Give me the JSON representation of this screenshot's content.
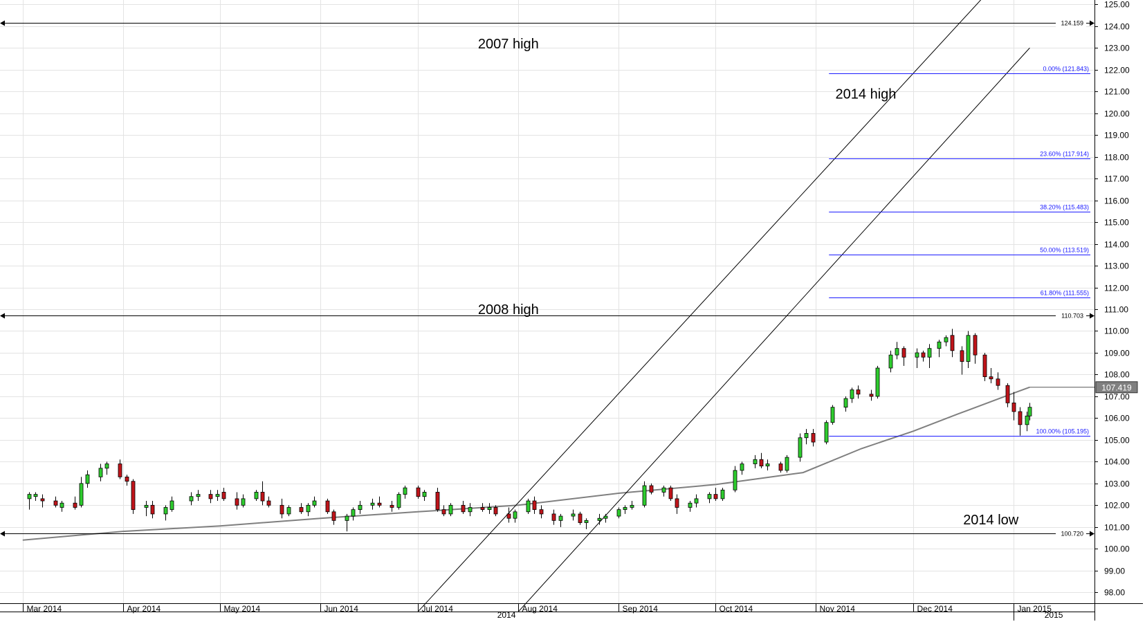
{
  "chart_data": {
    "type": "candlestick",
    "instrument_note": "",
    "y_axis": {
      "min": 97.5,
      "max": 125.2,
      "ticks": [
        "98.00",
        "99.00",
        "100.00",
        "101.00",
        "102.00",
        "103.00",
        "104.00",
        "105.00",
        "106.00",
        "107.00",
        "108.00",
        "109.00",
        "110.00",
        "111.00",
        "112.00",
        "113.00",
        "114.00",
        "115.00",
        "116.00",
        "117.00",
        "118.00",
        "119.00",
        "120.00",
        "121.00",
        "122.00",
        "123.00",
        "124.00",
        "125.00"
      ],
      "position": "right"
    },
    "x_axis": {
      "months": [
        "Mar 2014",
        "Apr 2014",
        "May 2014",
        "Jun 2014",
        "Jul 2014",
        "Aug 2014",
        "Sep 2014",
        "Oct 2014",
        "Nov 2014",
        "Dec 2014",
        "Jan 2015"
      ],
      "years": [
        "2014",
        "2015"
      ]
    },
    "grid": true,
    "current_price": "107.419",
    "annotations": [
      {
        "text": "2007 high",
        "value": 124.159,
        "value_label": "124.159"
      },
      {
        "text": "2008 high",
        "value": 110.703,
        "value_label": "110.703"
      },
      {
        "text": "2014 low",
        "value": 100.72,
        "value_label": "100.720"
      },
      {
        "text": "2014 high"
      }
    ],
    "fibonacci": {
      "high": 121.843,
      "low": 105.195,
      "levels": [
        {
          "label": "0.00% (121.843)",
          "value": 121.843
        },
        {
          "label": "23.60% (117.914)",
          "value": 117.914
        },
        {
          "label": "38.20% (115.483)",
          "value": 115.483
        },
        {
          "label": "50.00% (113.519)",
          "value": 113.519
        },
        {
          "label": "61.80% (111.555)",
          "value": 111.555
        },
        {
          "label": "100.00% (105.195)",
          "value": 105.195
        }
      ]
    },
    "trend_channel": {
      "upper": [
        {
          "date": "2014-07-01",
          "value": 97.1
        },
        {
          "date": "2015-01-02",
          "value": 127.0
        }
      ],
      "lower": [
        {
          "date": "2014-08-01",
          "value": 97.1
        },
        {
          "date": "2015-01-06",
          "value": 123.0
        }
      ]
    },
    "moving_average": [
      {
        "date": "2014-03-01",
        "value": 100.4
      },
      {
        "date": "2014-04-01",
        "value": 100.8
      },
      {
        "date": "2014-05-01",
        "value": 101.05
      },
      {
        "date": "2014-06-01",
        "value": 101.4
      },
      {
        "date": "2014-07-01",
        "value": 101.7
      },
      {
        "date": "2014-08-01",
        "value": 102.0
      },
      {
        "date": "2014-09-01",
        "value": 102.55
      },
      {
        "date": "2014-10-01",
        "value": 102.95
      },
      {
        "date": "2014-10-28",
        "value": 103.5
      },
      {
        "date": "2014-11-15",
        "value": 104.6
      },
      {
        "date": "2014-12-01",
        "value": 105.4
      },
      {
        "date": "2014-12-15",
        "value": 106.2
      },
      {
        "date": "2015-01-02",
        "value": 107.2
      },
      {
        "date": "2015-01-06",
        "value": 107.419
      }
    ],
    "candles": [
      {
        "date": "2014-03-03",
        "o": 102.3,
        "h": 102.6,
        "l": 101.8,
        "c": 102.5
      },
      {
        "date": "2014-03-05",
        "o": 102.4,
        "h": 102.6,
        "l": 102.2,
        "c": 102.5
      },
      {
        "date": "2014-03-07",
        "o": 102.3,
        "h": 102.5,
        "l": 101.9,
        "c": 102.2
      },
      {
        "date": "2014-03-11",
        "o": 102.2,
        "h": 102.4,
        "l": 101.9,
        "c": 102.0
      },
      {
        "date": "2014-03-13",
        "o": 101.9,
        "h": 102.2,
        "l": 101.7,
        "c": 102.1
      },
      {
        "date": "2014-03-17",
        "o": 102.1,
        "h": 102.4,
        "l": 101.8,
        "c": 101.9
      },
      {
        "date": "2014-03-19",
        "o": 102.0,
        "h": 103.3,
        "l": 101.9,
        "c": 103.0
      },
      {
        "date": "2014-03-21",
        "o": 103.0,
        "h": 103.6,
        "l": 102.8,
        "c": 103.4
      },
      {
        "date": "2014-03-25",
        "o": 103.3,
        "h": 103.9,
        "l": 103.1,
        "c": 103.7
      },
      {
        "date": "2014-03-27",
        "o": 103.7,
        "h": 104.0,
        "l": 103.4,
        "c": 103.9
      },
      {
        "date": "2014-03-31",
        "o": 103.9,
        "h": 104.1,
        "l": 103.2,
        "c": 103.3
      },
      {
        "date": "2014-04-02",
        "o": 103.3,
        "h": 103.4,
        "l": 102.9,
        "c": 103.1
      },
      {
        "date": "2014-04-04",
        "o": 103.1,
        "h": 103.2,
        "l": 101.6,
        "c": 101.8
      },
      {
        "date": "2014-04-08",
        "o": 101.9,
        "h": 102.2,
        "l": 101.5,
        "c": 102.0
      },
      {
        "date": "2014-04-10",
        "o": 102.0,
        "h": 102.2,
        "l": 101.4,
        "c": 101.6
      },
      {
        "date": "2014-04-14",
        "o": 101.6,
        "h": 102.0,
        "l": 101.3,
        "c": 101.9
      },
      {
        "date": "2014-04-16",
        "o": 101.8,
        "h": 102.4,
        "l": 101.7,
        "c": 102.2
      },
      {
        "date": "2014-04-22",
        "o": 102.2,
        "h": 102.6,
        "l": 102.0,
        "c": 102.4
      },
      {
        "date": "2014-04-24",
        "o": 102.4,
        "h": 102.7,
        "l": 102.2,
        "c": 102.5
      },
      {
        "date": "2014-04-28",
        "o": 102.5,
        "h": 102.7,
        "l": 102.1,
        "c": 102.3
      },
      {
        "date": "2014-04-30",
        "o": 102.4,
        "h": 102.7,
        "l": 102.2,
        "c": 102.5
      },
      {
        "date": "2014-05-02",
        "o": 102.6,
        "h": 102.8,
        "l": 102.2,
        "c": 102.3
      },
      {
        "date": "2014-05-06",
        "o": 102.3,
        "h": 102.6,
        "l": 101.8,
        "c": 102.0
      },
      {
        "date": "2014-05-08",
        "o": 102.0,
        "h": 102.5,
        "l": 101.9,
        "c": 102.3
      },
      {
        "date": "2014-05-12",
        "o": 102.3,
        "h": 102.7,
        "l": 102.2,
        "c": 102.6
      },
      {
        "date": "2014-05-14",
        "o": 102.6,
        "h": 103.1,
        "l": 102.0,
        "c": 102.2
      },
      {
        "date": "2014-05-16",
        "o": 102.2,
        "h": 102.4,
        "l": 101.9,
        "c": 102.0
      },
      {
        "date": "2014-05-20",
        "o": 102.0,
        "h": 102.3,
        "l": 101.4,
        "c": 101.6
      },
      {
        "date": "2014-05-22",
        "o": 101.6,
        "h": 102.0,
        "l": 101.5,
        "c": 101.9
      },
      {
        "date": "2014-05-26",
        "o": 101.9,
        "h": 102.1,
        "l": 101.6,
        "c": 101.7
      },
      {
        "date": "2014-05-28",
        "o": 101.7,
        "h": 102.1,
        "l": 101.5,
        "c": 102.0
      },
      {
        "date": "2014-05-30",
        "o": 102.0,
        "h": 102.4,
        "l": 101.9,
        "c": 102.2
      },
      {
        "date": "2014-06-03",
        "o": 102.2,
        "h": 102.3,
        "l": 101.6,
        "c": 101.7
      },
      {
        "date": "2014-06-05",
        "o": 101.7,
        "h": 101.8,
        "l": 101.1,
        "c": 101.3
      },
      {
        "date": "2014-06-09",
        "o": 101.3,
        "h": 101.6,
        "l": 100.8,
        "c": 101.5
      },
      {
        "date": "2014-06-11",
        "o": 101.5,
        "h": 101.9,
        "l": 101.3,
        "c": 101.8
      },
      {
        "date": "2014-06-13",
        "o": 101.8,
        "h": 102.2,
        "l": 101.6,
        "c": 102.0
      },
      {
        "date": "2014-06-17",
        "o": 102.0,
        "h": 102.3,
        "l": 101.8,
        "c": 102.1
      },
      {
        "date": "2014-06-19",
        "o": 102.1,
        "h": 102.4,
        "l": 101.9,
        "c": 102.0
      },
      {
        "date": "2014-06-23",
        "o": 102.0,
        "h": 102.2,
        "l": 101.7,
        "c": 101.9
      },
      {
        "date": "2014-06-25",
        "o": 101.9,
        "h": 102.6,
        "l": 101.8,
        "c": 102.5
      },
      {
        "date": "2014-06-27",
        "o": 102.5,
        "h": 102.9,
        "l": 102.3,
        "c": 102.8
      },
      {
        "date": "2014-07-01",
        "o": 102.8,
        "h": 102.9,
        "l": 102.3,
        "c": 102.4
      },
      {
        "date": "2014-07-03",
        "o": 102.4,
        "h": 102.7,
        "l": 102.2,
        "c": 102.6
      },
      {
        "date": "2014-07-07",
        "o": 102.6,
        "h": 102.8,
        "l": 101.7,
        "c": 101.8
      },
      {
        "date": "2014-07-09",
        "o": 101.8,
        "h": 102.0,
        "l": 101.5,
        "c": 101.6
      },
      {
        "date": "2014-07-11",
        "o": 101.6,
        "h": 102.1,
        "l": 101.5,
        "c": 102.0
      },
      {
        "date": "2014-07-15",
        "o": 102.0,
        "h": 102.2,
        "l": 101.6,
        "c": 101.7
      },
      {
        "date": "2014-07-17",
        "o": 101.7,
        "h": 102.1,
        "l": 101.5,
        "c": 101.9
      },
      {
        "date": "2014-07-21",
        "o": 101.9,
        "h": 102.1,
        "l": 101.7,
        "c": 101.8
      },
      {
        "date": "2014-07-23",
        "o": 101.8,
        "h": 102.1,
        "l": 101.6,
        "c": 101.9
      },
      {
        "date": "2014-07-25",
        "o": 101.9,
        "h": 102.0,
        "l": 101.5,
        "c": 101.6
      },
      {
        "date": "2014-07-29",
        "o": 101.6,
        "h": 101.9,
        "l": 101.2,
        "c": 101.4
      },
      {
        "date": "2014-07-31",
        "o": 101.4,
        "h": 101.8,
        "l": 101.2,
        "c": 101.7
      },
      {
        "date": "2014-08-04",
        "o": 101.7,
        "h": 102.3,
        "l": 101.6,
        "c": 102.2
      },
      {
        "date": "2014-08-06",
        "o": 102.2,
        "h": 102.4,
        "l": 101.6,
        "c": 101.8
      },
      {
        "date": "2014-08-08",
        "o": 101.8,
        "h": 102.0,
        "l": 101.4,
        "c": 101.6
      },
      {
        "date": "2014-08-12",
        "o": 101.6,
        "h": 101.8,
        "l": 101.1,
        "c": 101.3
      },
      {
        "date": "2014-08-14",
        "o": 101.3,
        "h": 101.6,
        "l": 101.0,
        "c": 101.5
      },
      {
        "date": "2014-08-18",
        "o": 101.5,
        "h": 101.8,
        "l": 101.3,
        "c": 101.6
      },
      {
        "date": "2014-08-20",
        "o": 101.6,
        "h": 101.7,
        "l": 101.1,
        "c": 101.2
      },
      {
        "date": "2014-08-22",
        "o": 101.2,
        "h": 101.4,
        "l": 100.9,
        "c": 101.3
      },
      {
        "date": "2014-08-26",
        "o": 101.3,
        "h": 101.6,
        "l": 101.1,
        "c": 101.4
      },
      {
        "date": "2014-08-28",
        "o": 101.4,
        "h": 101.6,
        "l": 101.2,
        "c": 101.5
      },
      {
        "date": "2014-09-01",
        "o": 101.5,
        "h": 101.9,
        "l": 101.4,
        "c": 101.8
      },
      {
        "date": "2014-09-03",
        "o": 101.8,
        "h": 102.0,
        "l": 101.6,
        "c": 101.9
      },
      {
        "date": "2014-09-05",
        "o": 101.9,
        "h": 102.2,
        "l": 101.8,
        "c": 102.0
      },
      {
        "date": "2014-09-09",
        "o": 102.0,
        "h": 103.1,
        "l": 101.9,
        "c": 102.9
      },
      {
        "date": "2014-09-11",
        "o": 102.9,
        "h": 103.0,
        "l": 102.5,
        "c": 102.6
      },
      {
        "date": "2014-09-15",
        "o": 102.6,
        "h": 102.9,
        "l": 102.4,
        "c": 102.8
      },
      {
        "date": "2014-09-17",
        "o": 102.8,
        "h": 102.9,
        "l": 102.2,
        "c": 102.3
      },
      {
        "date": "2014-09-19",
        "o": 102.3,
        "h": 102.5,
        "l": 101.6,
        "c": 101.9
      },
      {
        "date": "2014-09-23",
        "o": 101.9,
        "h": 102.2,
        "l": 101.7,
        "c": 102.1
      },
      {
        "date": "2014-09-25",
        "o": 102.1,
        "h": 102.5,
        "l": 101.9,
        "c": 102.3
      },
      {
        "date": "2014-09-29",
        "o": 102.3,
        "h": 102.6,
        "l": 102.1,
        "c": 102.5
      },
      {
        "date": "2014-10-01",
        "o": 102.5,
        "h": 102.8,
        "l": 102.2,
        "c": 102.3
      },
      {
        "date": "2014-10-03",
        "o": 102.3,
        "h": 102.8,
        "l": 102.2,
        "c": 102.7
      },
      {
        "date": "2014-10-07",
        "o": 102.7,
        "h": 103.8,
        "l": 102.6,
        "c": 103.6
      },
      {
        "date": "2014-10-09",
        "o": 103.6,
        "h": 104.0,
        "l": 103.4,
        "c": 103.9
      },
      {
        "date": "2014-10-13",
        "o": 103.9,
        "h": 104.3,
        "l": 103.7,
        "c": 104.1
      },
      {
        "date": "2014-10-15",
        "o": 104.1,
        "h": 104.4,
        "l": 103.7,
        "c": 103.8
      },
      {
        "date": "2014-10-17",
        "o": 103.8,
        "h": 104.1,
        "l": 103.6,
        "c": 103.9
      },
      {
        "date": "2014-10-21",
        "o": 103.9,
        "h": 104.0,
        "l": 103.5,
        "c": 103.6
      },
      {
        "date": "2014-10-23",
        "o": 103.6,
        "h": 104.3,
        "l": 103.5,
        "c": 104.2
      },
      {
        "date": "2014-10-27",
        "o": 104.2,
        "h": 105.3,
        "l": 104.0,
        "c": 105.1
      },
      {
        "date": "2014-10-29",
        "o": 105.1,
        "h": 105.5,
        "l": 104.8,
        "c": 105.3
      },
      {
        "date": "2014-10-31",
        "o": 105.3,
        "h": 105.5,
        "l": 104.7,
        "c": 104.9
      },
      {
        "date": "2014-11-04",
        "o": 104.9,
        "h": 105.9,
        "l": 104.8,
        "c": 105.8
      },
      {
        "date": "2014-11-06",
        "o": 105.8,
        "h": 106.6,
        "l": 105.7,
        "c": 106.5
      },
      {
        "date": "2014-11-10",
        "o": 106.5,
        "h": 107.0,
        "l": 106.3,
        "c": 106.9
      },
      {
        "date": "2014-11-12",
        "o": 106.9,
        "h": 107.4,
        "l": 106.7,
        "c": 107.3
      },
      {
        "date": "2014-11-14",
        "o": 107.3,
        "h": 107.5,
        "l": 106.9,
        "c": 107.1
      },
      {
        "date": "2014-11-18",
        "o": 107.1,
        "h": 107.3,
        "l": 106.8,
        "c": 107.0
      },
      {
        "date": "2014-11-20",
        "o": 107.0,
        "h": 108.4,
        "l": 106.9,
        "c": 108.3
      },
      {
        "date": "2014-11-24",
        "o": 108.3,
        "h": 109.1,
        "l": 108.1,
        "c": 108.9
      },
      {
        "date": "2014-11-26",
        "o": 108.9,
        "h": 109.5,
        "l": 108.7,
        "c": 109.2
      },
      {
        "date": "2014-11-28",
        "o": 109.2,
        "h": 109.3,
        "l": 108.4,
        "c": 108.8
      },
      {
        "date": "2014-12-02",
        "o": 108.8,
        "h": 109.2,
        "l": 108.3,
        "c": 109.0
      },
      {
        "date": "2014-12-04",
        "o": 109.0,
        "h": 109.1,
        "l": 108.6,
        "c": 108.8
      },
      {
        "date": "2014-12-06",
        "o": 108.8,
        "h": 109.4,
        "l": 108.3,
        "c": 109.2
      },
      {
        "date": "2014-12-09",
        "o": 109.2,
        "h": 109.6,
        "l": 108.8,
        "c": 109.5
      },
      {
        "date": "2014-12-11",
        "o": 109.5,
        "h": 109.8,
        "l": 109.3,
        "c": 109.7
      },
      {
        "date": "2014-12-13",
        "o": 109.8,
        "h": 110.1,
        "l": 108.8,
        "c": 109.1
      },
      {
        "date": "2014-12-16",
        "o": 109.1,
        "h": 109.3,
        "l": 108.0,
        "c": 108.6
      },
      {
        "date": "2014-12-18",
        "o": 108.6,
        "h": 110.0,
        "l": 108.3,
        "c": 109.8
      },
      {
        "date": "2014-12-20",
        "o": 109.8,
        "h": 109.9,
        "l": 108.5,
        "c": 108.9
      },
      {
        "date": "2014-12-23",
        "o": 108.9,
        "h": 109.0,
        "l": 107.7,
        "c": 107.9
      },
      {
        "date": "2014-12-25",
        "o": 107.9,
        "h": 108.3,
        "l": 107.6,
        "c": 107.8
      },
      {
        "date": "2014-12-27",
        "o": 107.8,
        "h": 108.1,
        "l": 107.3,
        "c": 107.5
      },
      {
        "date": "2014-12-30",
        "o": 107.5,
        "h": 107.6,
        "l": 106.5,
        "c": 106.7
      },
      {
        "date": "2015-01-01",
        "o": 106.7,
        "h": 107.2,
        "l": 105.9,
        "c": 106.3
      },
      {
        "date": "2015-01-03",
        "o": 106.3,
        "h": 106.5,
        "l": 105.2,
        "c": 105.7
      },
      {
        "date": "2015-01-05",
        "o": 105.7,
        "h": 106.3,
        "l": 105.4,
        "c": 106.1
      },
      {
        "date": "2015-01-06",
        "o": 106.1,
        "h": 106.7,
        "l": 105.9,
        "c": 106.5
      }
    ]
  }
}
